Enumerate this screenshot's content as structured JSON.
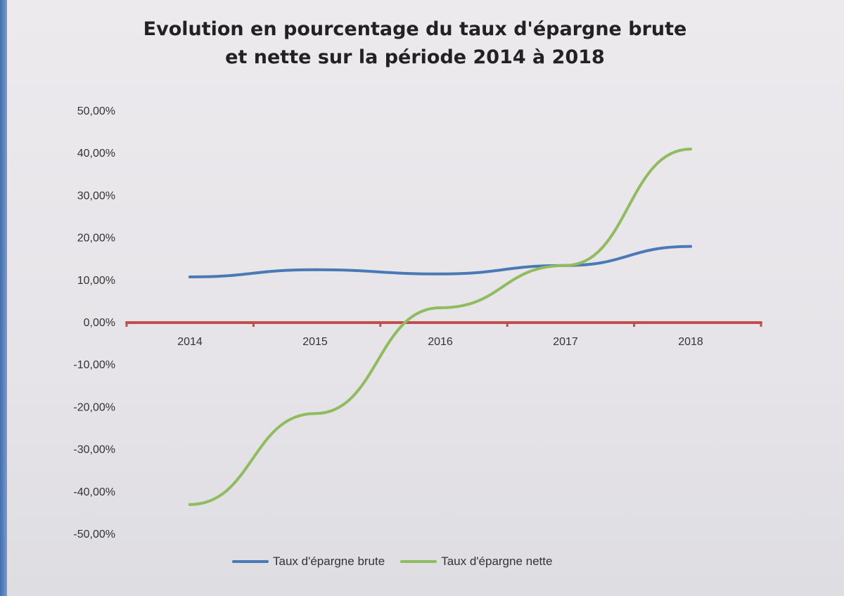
{
  "chart_data": {
    "type": "line",
    "title_line1": "Evolution en pourcentage du taux d'épargne brute",
    "title_line2": "et nette sur la période 2014 à 2018",
    "categories": [
      "2014",
      "2015",
      "2016",
      "2017",
      "2018"
    ],
    "ylim": [
      -50,
      50
    ],
    "yticks": [
      "50,00%",
      "40,00%",
      "30,00%",
      "20,00%",
      "10,00%",
      "0,00%",
      "-10,00%",
      "-20,00%",
      "-30,00%",
      "-40,00%",
      "-50,00%"
    ],
    "grid": false,
    "legend_position": "bottom",
    "series": [
      {
        "name": "Taux d'épargne brute",
        "color": "#4a7ab5",
        "values": [
          10.8,
          12.5,
          11.5,
          13.5,
          18.0
        ]
      },
      {
        "name": "Taux d'épargne nette",
        "color": "#8fbc5f",
        "values": [
          -43.0,
          -21.5,
          3.5,
          13.5,
          41.0
        ]
      }
    ],
    "zero_axis_color": "#c0504d"
  }
}
